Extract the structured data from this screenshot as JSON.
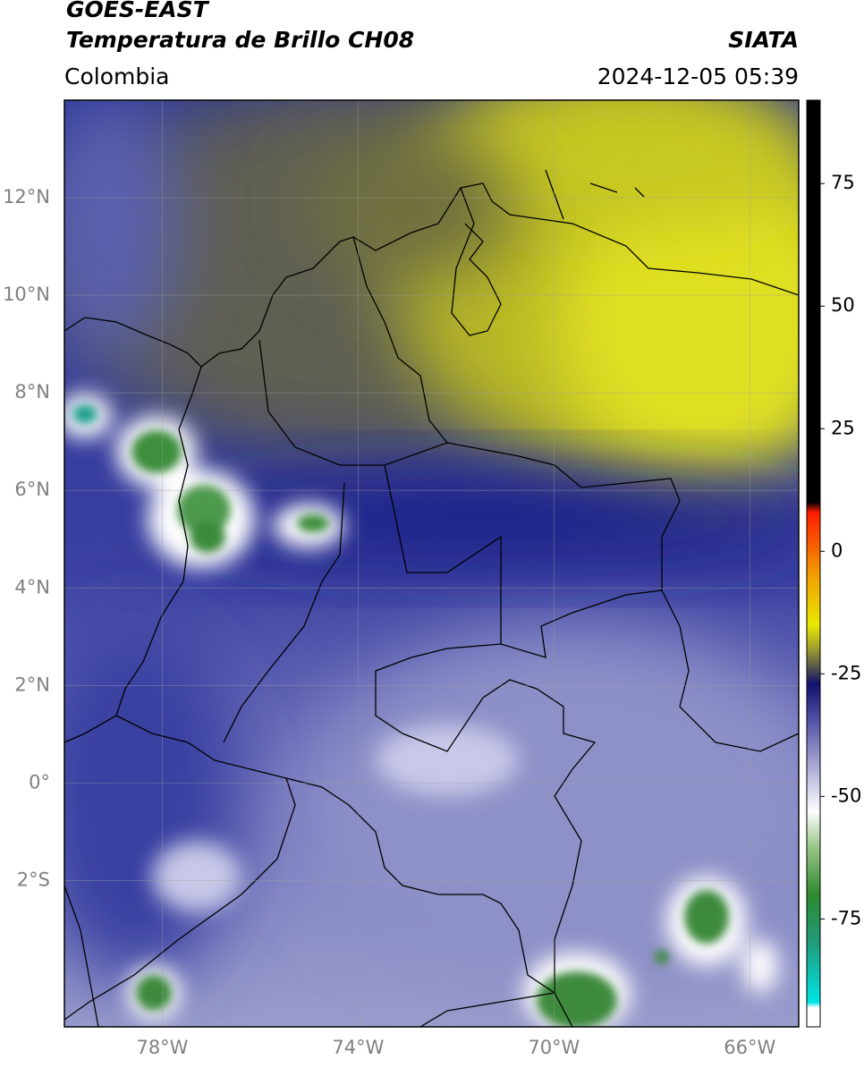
{
  "header": {
    "title": "GOES-EAST",
    "subtitle": "Temperatura de Brillo CH08",
    "source": "SIATA",
    "region": "Colombia",
    "datetime": "2024-12-05 05:39"
  },
  "map": {
    "xlim": [
      -80,
      -65
    ],
    "ylim": [
      -5,
      14
    ],
    "grid": true,
    "xticks": [
      {
        "value": -78,
        "label": "78°W"
      },
      {
        "value": -74,
        "label": "74°W"
      },
      {
        "value": -70,
        "label": "70°W"
      },
      {
        "value": -66,
        "label": "66°W"
      }
    ],
    "yticks": [
      {
        "value": 12,
        "label": "12°N"
      },
      {
        "value": 10,
        "label": "10°N"
      },
      {
        "value": 8,
        "label": "8°N"
      },
      {
        "value": 6,
        "label": "6°N"
      },
      {
        "value": 4,
        "label": "4°N"
      },
      {
        "value": 2,
        "label": "2°N"
      },
      {
        "value": 0,
        "label": "0°"
      },
      {
        "value": -2,
        "label": "2°S"
      }
    ]
  },
  "colorbar": {
    "lim": [
      -97,
      92
    ],
    "ticks": [
      -75,
      -50,
      -25,
      0,
      25,
      50,
      75
    ],
    "colormap": [
      {
        "value": -97,
        "color": "#ffffff"
      },
      {
        "value": -93,
        "color": "#ffffff"
      },
      {
        "value": -92,
        "color": "#00e6e6"
      },
      {
        "value": -80,
        "color": "#1f9c7c"
      },
      {
        "value": -70,
        "color": "#2e8a2e"
      },
      {
        "value": -60,
        "color": "#9cc88c"
      },
      {
        "value": -53,
        "color": "#ffffff"
      },
      {
        "value": -45,
        "color": "#b4b4da"
      },
      {
        "value": -35,
        "color": "#5858aa"
      },
      {
        "value": -27,
        "color": "#10106e"
      },
      {
        "value": -24,
        "color": "#4e4e4e"
      },
      {
        "value": -20,
        "color": "#9a9a30"
      },
      {
        "value": -15,
        "color": "#e8e800"
      },
      {
        "value": -5,
        "color": "#f2a000"
      },
      {
        "value": 8,
        "color": "#ff1a00"
      },
      {
        "value": 10,
        "color": "#000000"
      },
      {
        "value": 92,
        "color": "#000000"
      }
    ]
  }
}
